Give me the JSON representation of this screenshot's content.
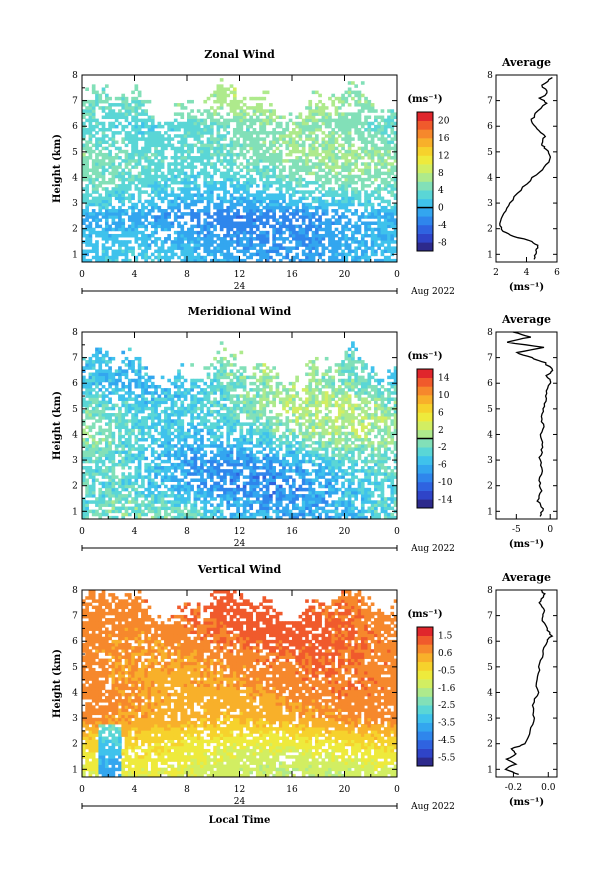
{
  "colors": {
    "colormap": [
      "#2d2a8c",
      "#2f44c8",
      "#2f63e0",
      "#2f86ec",
      "#33a6ef",
      "#3fc2ec",
      "#5ad6d6",
      "#82e0b8",
      "#aeea8c",
      "#d2ee62",
      "#eeea3c",
      "#f6d22c",
      "#f8b02a",
      "#f6882c",
      "#f05a2c",
      "#e0262c"
    ],
    "black": "#000000"
  },
  "common": {
    "x_ticks": [
      "0",
      "4",
      "8",
      "12",
      "16",
      "20",
      "0"
    ],
    "day_label": "24",
    "date_label": "Aug 2022",
    "height_label": "Height (km)",
    "height_ticks": [
      "1",
      "2",
      "3",
      "4",
      "5",
      "6",
      "7",
      "8"
    ],
    "time_label": "Local Time",
    "avg_title": "Average",
    "unit": "(ms⁻¹)"
  },
  "chart_data": [
    {
      "type": "heatmap",
      "title": "Zonal Wind",
      "ylabel": "Height (km)",
      "xlim": [
        0,
        24
      ],
      "ylim": [
        0.7,
        8
      ],
      "colorbar": {
        "unit": "(ms⁻¹)",
        "ticks": [
          "20",
          "16",
          "12",
          "8",
          "4",
          "0",
          "-4",
          "-8"
        ],
        "range": [
          -10,
          22
        ],
        "zero_line": 0
      },
      "profile": {
        "title": "Average",
        "xlabel": "(ms⁻¹)",
        "xticks": [
          "2",
          "4",
          "6"
        ],
        "xlim": [
          2,
          6
        ],
        "points": [
          [
            4.5,
            0.8
          ],
          [
            4.6,
            1.1
          ],
          [
            4.8,
            1.3
          ],
          [
            4.4,
            1.5
          ],
          [
            3.2,
            1.7
          ],
          [
            2.4,
            1.9
          ],
          [
            2.3,
            2.2
          ],
          [
            2.5,
            2.6
          ],
          [
            2.9,
            3.0
          ],
          [
            3.6,
            3.5
          ],
          [
            4.4,
            4.0
          ],
          [
            5.2,
            4.4
          ],
          [
            5.6,
            4.8
          ],
          [
            5.3,
            5.1
          ],
          [
            5.0,
            5.3
          ],
          [
            5.2,
            5.6
          ],
          [
            4.7,
            5.9
          ],
          [
            4.3,
            6.2
          ],
          [
            4.6,
            6.5
          ],
          [
            5.3,
            6.9
          ],
          [
            4.9,
            7.1
          ],
          [
            5.4,
            7.3
          ],
          [
            5.0,
            7.6
          ],
          [
            5.7,
            7.9
          ]
        ]
      },
      "field": {
        "base": [
          [
            1,
            0
          ],
          [
            2,
            -1
          ],
          [
            2.5,
            -2
          ],
          [
            3,
            1
          ],
          [
            4,
            4
          ],
          [
            5,
            5
          ],
          [
            6,
            4
          ],
          [
            7,
            6
          ],
          [
            8,
            6
          ]
        ],
        "diurnal": 1.5
      }
    },
    {
      "type": "heatmap",
      "title": "Meridional Wind",
      "ylabel": "Height (km)",
      "xlim": [
        0,
        24
      ],
      "ylim": [
        0.7,
        8
      ],
      "colorbar": {
        "unit": "(ms⁻¹)",
        "ticks": [
          "14",
          "10",
          "6",
          "2",
          "-2",
          "-6",
          "-10",
          "-14"
        ],
        "range": [
          -16,
          16
        ],
        "zero_line": 0
      },
      "profile": {
        "title": "Average",
        "xlabel": "(ms⁻¹)",
        "xticks": [
          "-5",
          "0"
        ],
        "xlim": [
          -8,
          1
        ],
        "points": [
          [
            -1.5,
            0.8
          ],
          [
            -1.0,
            1.1
          ],
          [
            -1.8,
            1.4
          ],
          [
            -1.3,
            1.8
          ],
          [
            -1.6,
            2.2
          ],
          [
            -1.2,
            2.7
          ],
          [
            -1.5,
            3.1
          ],
          [
            -1.1,
            3.5
          ],
          [
            -1.4,
            3.9
          ],
          [
            -1.0,
            4.3
          ],
          [
            -1.3,
            4.7
          ],
          [
            -0.9,
            5.1
          ],
          [
            -0.6,
            5.5
          ],
          [
            -0.3,
            5.9
          ],
          [
            0.1,
            6.1
          ],
          [
            -0.5,
            6.3
          ],
          [
            0.4,
            6.5
          ],
          [
            -0.8,
            6.8
          ],
          [
            -2.8,
            7.0
          ],
          [
            -5.0,
            7.2
          ],
          [
            -0.9,
            7.4
          ],
          [
            -6.5,
            7.6
          ],
          [
            -3.0,
            7.8
          ],
          [
            -5.5,
            8.0
          ]
        ]
      },
      "field": {
        "base": [
          [
            1,
            -4
          ],
          [
            2,
            -6
          ],
          [
            3,
            -5
          ],
          [
            4,
            -2
          ],
          [
            5,
            -1
          ],
          [
            6,
            -3
          ],
          [
            7,
            -2
          ],
          [
            8,
            -4
          ]
        ],
        "diurnal": 3
      }
    },
    {
      "type": "heatmap",
      "title": "Vertical Wind",
      "ylabel": "Height (km)",
      "xlabel": "Local Time",
      "xlim": [
        0,
        24
      ],
      "ylim": [
        0.7,
        8
      ],
      "colorbar": {
        "unit": "(ms⁻¹)",
        "ticks": [
          "1.5",
          "0.6",
          "-0.5",
          "-1.6",
          "-2.5",
          "-3.5",
          "-4.5",
          "-5.5"
        ],
        "range": [
          -6,
          2
        ]
      },
      "profile": {
        "title": "Average",
        "xlabel": "(ms⁻¹)",
        "xticks": [
          "-0.2",
          "0.0"
        ],
        "xlim": [
          -0.3,
          0.05
        ],
        "points": [
          [
            -0.17,
            0.8
          ],
          [
            -0.25,
            1.0
          ],
          [
            -0.19,
            1.2
          ],
          [
            -0.24,
            1.4
          ],
          [
            -0.18,
            1.6
          ],
          [
            -0.21,
            1.8
          ],
          [
            -0.13,
            2.0
          ],
          [
            -0.1,
            2.5
          ],
          [
            -0.08,
            3.0
          ],
          [
            -0.09,
            3.5
          ],
          [
            -0.06,
            4.0
          ],
          [
            -0.07,
            4.5
          ],
          [
            -0.05,
            5.0
          ],
          [
            -0.03,
            5.5
          ],
          [
            -0.01,
            6.0
          ],
          [
            0.02,
            6.2
          ],
          [
            -0.01,
            6.5
          ],
          [
            -0.04,
            6.9
          ],
          [
            -0.02,
            7.2
          ],
          [
            -0.05,
            7.5
          ],
          [
            -0.02,
            7.8
          ],
          [
            -0.04,
            8.0
          ]
        ]
      },
      "field": {
        "base": [
          [
            1,
            -1.2
          ],
          [
            2,
            -0.6
          ],
          [
            3,
            0.4
          ],
          [
            4,
            0.6
          ],
          [
            5,
            0.7
          ],
          [
            6,
            0.9
          ],
          [
            7,
            1.0
          ],
          [
            8,
            1.0
          ]
        ],
        "diurnal": 0.3
      }
    }
  ]
}
